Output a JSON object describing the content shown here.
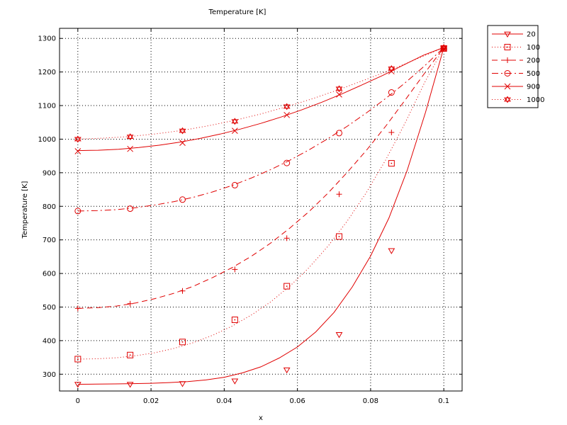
{
  "chart_data": {
    "type": "line",
    "title": "Temperature [K]",
    "xlabel": "x",
    "ylabel": "Temperature [K]",
    "xlim": [
      -0.005,
      0.105
    ],
    "ylim": [
      250,
      1330
    ],
    "xticks": [
      0,
      0.02,
      0.04,
      0.06,
      0.08,
      0.1
    ],
    "xtick_labels": [
      "0",
      "0.02",
      "0.04",
      "0.06",
      "0.08",
      "0.1"
    ],
    "yticks": [
      300,
      400,
      500,
      600,
      700,
      800,
      900,
      1000,
      1100,
      1200,
      1300
    ],
    "ytick_labels": [
      "300",
      "400",
      "500",
      "600",
      "700",
      "800",
      "900",
      "1000",
      "1100",
      "1200",
      "1300"
    ],
    "grid": true,
    "legend_position": "outside-top-right",
    "color": "#e00000",
    "marker_x": [
      0,
      0.0143,
      0.0286,
      0.0429,
      0.0571,
      0.0714,
      0.0857,
      0.1
    ],
    "series": [
      {
        "name": "20",
        "line_style": "solid",
        "marker": "triangle-down",
        "curve_y": [
          270,
          270.5,
          271,
          272,
          273,
          275,
          278,
          283,
          291,
          304,
          322,
          348,
          381,
          426,
          484,
          560,
          652,
          765,
          907,
          1080,
          1273
        ],
        "marker_y": [
          270,
          270,
          272,
          280,
          313,
          418,
          668,
          1270
        ]
      },
      {
        "name": "100",
        "line_style": "dotted",
        "marker": "square",
        "curve_y": [
          345,
          346,
          349,
          355,
          364,
          377,
          394,
          416,
          443,
          476,
          515,
          562,
          617,
          682,
          757,
          843,
          940,
          1049,
          1168,
          1273
        ],
        "marker_y": [
          345,
          357,
          396,
          462,
          562,
          710,
          928,
          1270
        ]
      },
      {
        "name": "200",
        "line_style": "dashed",
        "marker": "plus",
        "curve_y": [
          496,
          498,
          503,
          512,
          525,
          541,
          562,
          588,
          617,
          651,
          690,
          735,
          784,
          840,
          902,
          968,
          1040,
          1117,
          1196,
          1273
        ],
        "marker_y": [
          496,
          510,
          548,
          612,
          705,
          836,
          1020,
          1270
        ]
      },
      {
        "name": "500",
        "line_style": "dash-dot",
        "marker": "circle",
        "curve_y": [
          786,
          787,
          790,
          796,
          804,
          814,
          827,
          843,
          862,
          884,
          909,
          937,
          968,
          1002,
          1039,
          1079,
          1122,
          1168,
          1218,
          1273
        ],
        "marker_y": [
          786,
          793,
          820,
          863,
          929,
          1018,
          1139,
          1270
        ]
      },
      {
        "name": "900",
        "line_style": "solid",
        "marker": "x",
        "curve_y": [
          966,
          967,
          970,
          975,
          982,
          991,
          1002,
          1015,
          1030,
          1047,
          1066,
          1087,
          1110,
          1135,
          1162,
          1190,
          1220,
          1250,
          1273
        ],
        "marker_y": [
          964,
          971,
          989,
          1025,
          1072,
          1133,
          1202,
          1270
        ]
      },
      {
        "name": "1000",
        "line_style": "dotted",
        "marker": "star",
        "curve_y": [
          1000,
          1003,
          1008,
          1016,
          1026,
          1040,
          1056,
          1075,
          1097,
          1121,
          1148,
          1177,
          1207,
          1240,
          1273
        ],
        "marker_y": [
          1000,
          1007,
          1025,
          1053,
          1097,
          1150,
          1210,
          1273
        ]
      }
    ]
  }
}
